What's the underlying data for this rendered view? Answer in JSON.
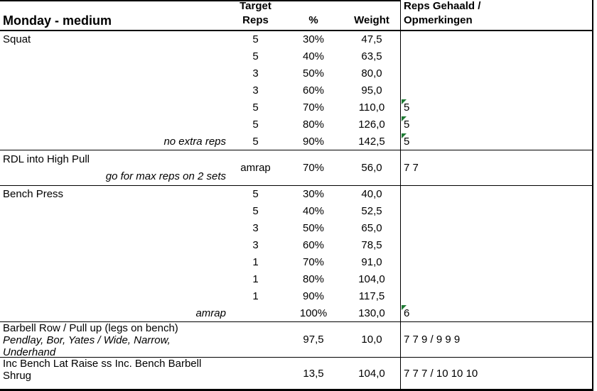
{
  "colors": {
    "comment_flag": "#1e7b34",
    "border": "#000000",
    "background": "#ffffff",
    "text": "#000000"
  },
  "icons": {
    "comment_flag": "green corner triangle (cell comment/error indicator)"
  },
  "table": {
    "header": {
      "title": "Monday - medium",
      "target_line1": "Target",
      "target_line2": "Reps",
      "percent": "%",
      "weight": "Weight",
      "reps_line1": "Reps Gehaald /",
      "reps_line2": "Opmerkingen"
    },
    "sections": [
      {
        "exercise": "Squat",
        "rows": [
          {
            "target": "5",
            "percent": "30%",
            "weight": "47,5",
            "result": ""
          },
          {
            "target": "5",
            "percent": "40%",
            "weight": "63,5",
            "result": ""
          },
          {
            "target": "3",
            "percent": "50%",
            "weight": "80,0",
            "result": ""
          },
          {
            "target": "3",
            "percent": "60%",
            "weight": "95,0",
            "result": ""
          },
          {
            "target": "5",
            "percent": "70%",
            "weight": "110,0",
            "result": "5",
            "flag": true
          },
          {
            "target": "5",
            "percent": "80%",
            "weight": "126,0",
            "result": "5",
            "flag": true
          },
          {
            "note": "no extra reps",
            "target": "5",
            "percent": "90%",
            "weight": "142,5",
            "result": "5",
            "flag": true
          }
        ]
      },
      {
        "exercise": "RDL into High Pull",
        "note": "go for max reps on 2 sets",
        "target": "amrap",
        "percent": "70%",
        "weight": "56,0",
        "result": "7 7"
      },
      {
        "exercise": "Bench Press",
        "rows": [
          {
            "target": "5",
            "percent": "30%",
            "weight": "40,0",
            "result": ""
          },
          {
            "target": "5",
            "percent": "40%",
            "weight": "52,5",
            "result": ""
          },
          {
            "target": "3",
            "percent": "50%",
            "weight": "65,0",
            "result": ""
          },
          {
            "target": "3",
            "percent": "60%",
            "weight": "78,5",
            "result": ""
          },
          {
            "target": "1",
            "percent": "70%",
            "weight": "91,0",
            "result": ""
          },
          {
            "target": "1",
            "percent": "80%",
            "weight": "104,0",
            "result": ""
          },
          {
            "target": "1",
            "percent": "90%",
            "weight": "117,5",
            "result": ""
          },
          {
            "note": "amrap",
            "target": "",
            "percent": "100%",
            "weight": "130,0",
            "result": "6",
            "flag": true
          }
        ]
      },
      {
        "exercise": "Barbell Row / Pull up (legs on bench)",
        "note": "Pendlay, Bor, Yates / Wide, Narrow, Underhand",
        "target": "",
        "percent": "97,5",
        "weight": "10,0",
        "result": "7 7 9 / 9 9 9"
      },
      {
        "exercise": "Inc Bench Lat Raise ss Inc. Bench Barbell Shrug",
        "note": "",
        "target": "",
        "percent": "13,5",
        "weight": "104,0",
        "result": "7 7 7 / 10 10 10"
      }
    ]
  }
}
